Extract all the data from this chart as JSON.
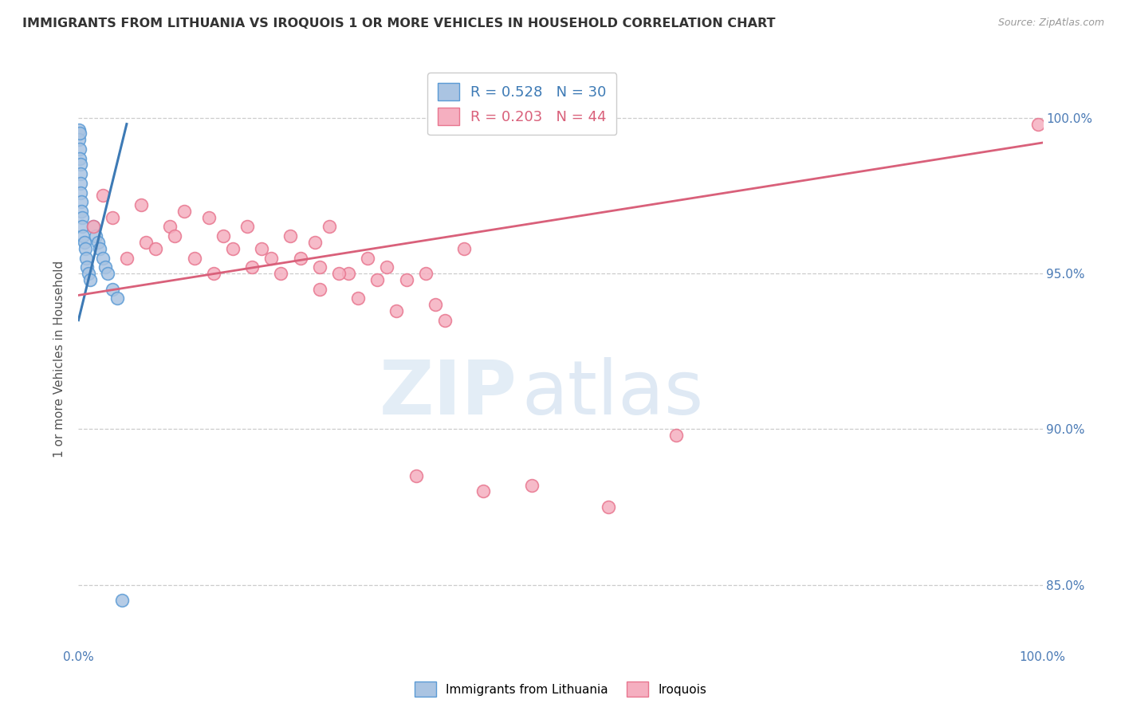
{
  "title": "IMMIGRANTS FROM LITHUANIA VS IROQUOIS 1 OR MORE VEHICLES IN HOUSEHOLD CORRELATION CHART",
  "source": "Source: ZipAtlas.com",
  "ylabel": "1 or more Vehicles in Household",
  "legend_labels": [
    "Immigrants from Lithuania",
    "Iroquois"
  ],
  "blue_R": "0.528",
  "blue_N": "30",
  "pink_R": "0.203",
  "pink_N": "44",
  "blue_color": "#aac4e2",
  "pink_color": "#f5afc0",
  "blue_edge_color": "#5b9bd5",
  "pink_edge_color": "#e8768f",
  "blue_line_color": "#3d7ab5",
  "pink_line_color": "#d9607a",
  "xlim": [
    0,
    100
  ],
  "ylim": [
    83.0,
    101.5
  ],
  "yticks": [
    85,
    90,
    95,
    100
  ],
  "ytick_labels": [
    "85.0%",
    "90.0%",
    "95.0%",
    "100.0%"
  ],
  "blue_scatter_x": [
    0.05,
    0.08,
    0.12,
    0.15,
    0.18,
    0.2,
    0.22,
    0.25,
    0.28,
    0.3,
    0.35,
    0.4,
    0.5,
    0.6,
    0.7,
    0.8,
    0.9,
    1.0,
    1.2,
    1.5,
    1.8,
    2.0,
    2.2,
    2.5,
    2.8,
    3.0,
    3.5,
    4.0,
    4.5,
    0.1
  ],
  "blue_scatter_y": [
    99.6,
    99.3,
    99.0,
    98.7,
    98.5,
    98.2,
    97.9,
    97.6,
    97.3,
    97.0,
    96.8,
    96.5,
    96.2,
    96.0,
    95.8,
    95.5,
    95.2,
    95.0,
    94.8,
    96.5,
    96.2,
    96.0,
    95.8,
    95.5,
    95.2,
    95.0,
    94.5,
    94.2,
    84.5,
    99.5
  ],
  "pink_scatter_x": [
    1.5,
    2.5,
    3.5,
    5.0,
    6.5,
    7.0,
    8.0,
    9.5,
    10.0,
    11.0,
    12.0,
    13.5,
    14.0,
    15.0,
    16.0,
    17.5,
    18.0,
    19.0,
    20.0,
    21.0,
    22.0,
    23.0,
    24.5,
    25.0,
    26.0,
    28.0,
    30.0,
    32.0,
    34.0,
    36.0,
    38.0,
    40.0,
    25.0,
    27.0,
    29.0,
    31.0,
    33.0,
    35.0,
    37.0,
    42.0,
    47.0,
    55.0,
    62.0,
    99.5
  ],
  "pink_scatter_y": [
    96.5,
    97.5,
    96.8,
    95.5,
    97.2,
    96.0,
    95.8,
    96.5,
    96.2,
    97.0,
    95.5,
    96.8,
    95.0,
    96.2,
    95.8,
    96.5,
    95.2,
    95.8,
    95.5,
    95.0,
    96.2,
    95.5,
    96.0,
    95.2,
    96.5,
    95.0,
    95.5,
    95.2,
    94.8,
    95.0,
    93.5,
    95.8,
    94.5,
    95.0,
    94.2,
    94.8,
    93.8,
    88.5,
    94.0,
    88.0,
    88.2,
    87.5,
    89.8,
    99.8
  ],
  "watermark_zip": "ZIP",
  "watermark_atlas": "atlas",
  "background_color": "#ffffff",
  "grid_color": "#cccccc"
}
